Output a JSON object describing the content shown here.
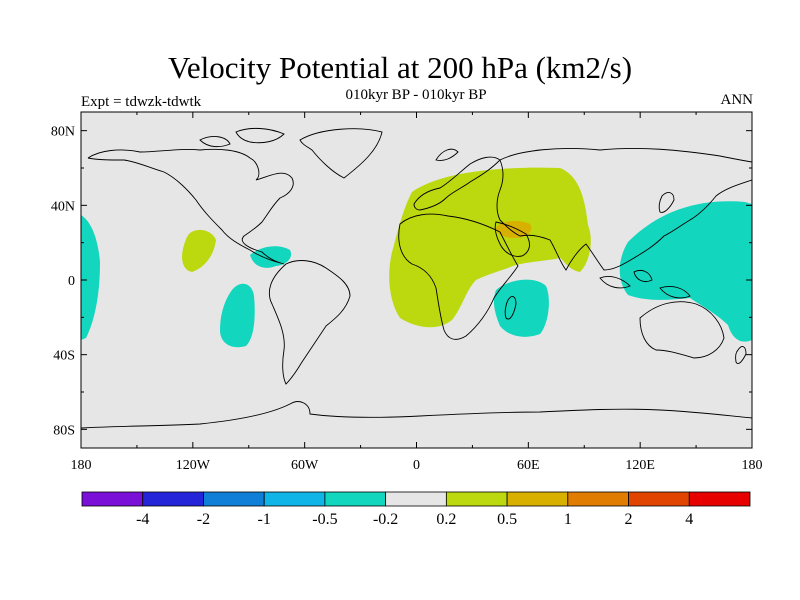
{
  "header": {
    "title": "Velocity Potential at 200 hPa (km2/s)",
    "subtitle": "010kyr BP - 010kyr BP",
    "left_label": "Expt = tdwzk-tdwtk",
    "right_label": "ANN"
  },
  "map": {
    "lon_ticks": [
      "180",
      "120W",
      "60W",
      "0",
      "60E",
      "120E",
      "180"
    ],
    "lat_ticks": [
      "80N",
      "40N",
      "0",
      "40S",
      "80S"
    ],
    "background_color": "#e6e6e6",
    "coast_color": "#000000"
  },
  "colorbar": {
    "colors": [
      "#7a10d8",
      "#2424d8",
      "#0f7fd8",
      "#10b4e6",
      "#12d6be",
      "#e6e6e6",
      "#bcd80e",
      "#d8b000",
      "#e07c00",
      "#e04400",
      "#e60000"
    ],
    "labels": [
      "-4",
      "-2",
      "-1",
      "-0.5",
      "-0.2",
      "0.2",
      "0.5",
      "1",
      "2",
      "4"
    ]
  },
  "chart_data": {
    "type": "heatmap",
    "projection": "cylindrical-equidistant",
    "lon_range": [
      -180,
      180
    ],
    "lat_range": [
      -90,
      90
    ],
    "levels": [
      -4,
      -2,
      -1,
      -0.5,
      -0.2,
      0.2,
      0.5,
      1,
      2,
      4
    ],
    "regions": [
      {
        "name": "north-africa-asia-positive",
        "class": "0.2 to 0.5",
        "color": "#bcd80e"
      },
      {
        "name": "arabia-positive-peak",
        "class": "0.5 to 1",
        "color": "#d8b000"
      },
      {
        "name": "west-pacific-negative",
        "class": "-0.5 to -0.2",
        "color": "#12d6be"
      },
      {
        "name": "central-pacific-negative",
        "class": "-0.5 to -0.2",
        "color": "#12d6be"
      },
      {
        "name": "caribbean-negative",
        "class": "-0.5 to -0.2",
        "color": "#12d6be"
      },
      {
        "name": "east-pacific-negative",
        "class": "-0.5 to -0.2",
        "color": "#12d6be"
      },
      {
        "name": "indian-ocean-negative",
        "class": "-0.5 to -0.2",
        "color": "#12d6be"
      },
      {
        "name": "east-pacific-positive",
        "class": "0.2 to 0.5",
        "color": "#bcd80e"
      }
    ]
  }
}
